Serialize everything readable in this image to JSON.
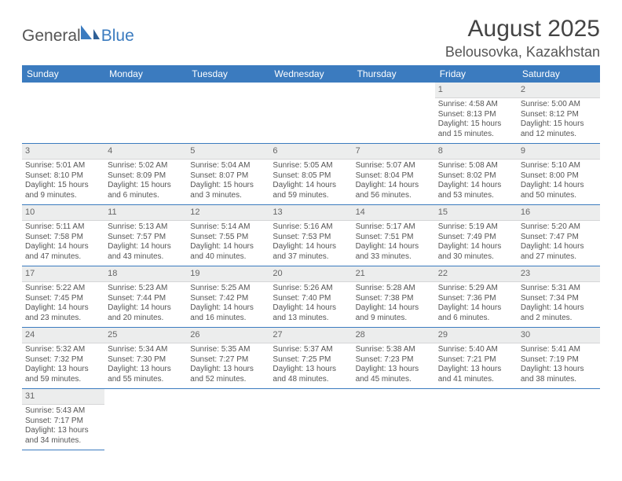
{
  "logo": {
    "part1": "General",
    "part2": "Blue"
  },
  "title": "August 2025",
  "location": "Belousovka, Kazakhstan",
  "colors": {
    "header_bg": "#3b7bbf",
    "header_text": "#ffffff",
    "daynum_bg": "#eceded",
    "divider": "#3b7bbf",
    "body_text": "#555555"
  },
  "weekdays": [
    "Sunday",
    "Monday",
    "Tuesday",
    "Wednesday",
    "Thursday",
    "Friday",
    "Saturday"
  ],
  "weeks": [
    [
      null,
      null,
      null,
      null,
      null,
      {
        "n": "1",
        "sunrise": "4:58 AM",
        "sunset": "8:13 PM",
        "daylight": "15 hours and 15 minutes."
      },
      {
        "n": "2",
        "sunrise": "5:00 AM",
        "sunset": "8:12 PM",
        "daylight": "15 hours and 12 minutes."
      }
    ],
    [
      {
        "n": "3",
        "sunrise": "5:01 AM",
        "sunset": "8:10 PM",
        "daylight": "15 hours and 9 minutes."
      },
      {
        "n": "4",
        "sunrise": "5:02 AM",
        "sunset": "8:09 PM",
        "daylight": "15 hours and 6 minutes."
      },
      {
        "n": "5",
        "sunrise": "5:04 AM",
        "sunset": "8:07 PM",
        "daylight": "15 hours and 3 minutes."
      },
      {
        "n": "6",
        "sunrise": "5:05 AM",
        "sunset": "8:05 PM",
        "daylight": "14 hours and 59 minutes."
      },
      {
        "n": "7",
        "sunrise": "5:07 AM",
        "sunset": "8:04 PM",
        "daylight": "14 hours and 56 minutes."
      },
      {
        "n": "8",
        "sunrise": "5:08 AM",
        "sunset": "8:02 PM",
        "daylight": "14 hours and 53 minutes."
      },
      {
        "n": "9",
        "sunrise": "5:10 AM",
        "sunset": "8:00 PM",
        "daylight": "14 hours and 50 minutes."
      }
    ],
    [
      {
        "n": "10",
        "sunrise": "5:11 AM",
        "sunset": "7:58 PM",
        "daylight": "14 hours and 47 minutes."
      },
      {
        "n": "11",
        "sunrise": "5:13 AM",
        "sunset": "7:57 PM",
        "daylight": "14 hours and 43 minutes."
      },
      {
        "n": "12",
        "sunrise": "5:14 AM",
        "sunset": "7:55 PM",
        "daylight": "14 hours and 40 minutes."
      },
      {
        "n": "13",
        "sunrise": "5:16 AM",
        "sunset": "7:53 PM",
        "daylight": "14 hours and 37 minutes."
      },
      {
        "n": "14",
        "sunrise": "5:17 AM",
        "sunset": "7:51 PM",
        "daylight": "14 hours and 33 minutes."
      },
      {
        "n": "15",
        "sunrise": "5:19 AM",
        "sunset": "7:49 PM",
        "daylight": "14 hours and 30 minutes."
      },
      {
        "n": "16",
        "sunrise": "5:20 AM",
        "sunset": "7:47 PM",
        "daylight": "14 hours and 27 minutes."
      }
    ],
    [
      {
        "n": "17",
        "sunrise": "5:22 AM",
        "sunset": "7:45 PM",
        "daylight": "14 hours and 23 minutes."
      },
      {
        "n": "18",
        "sunrise": "5:23 AM",
        "sunset": "7:44 PM",
        "daylight": "14 hours and 20 minutes."
      },
      {
        "n": "19",
        "sunrise": "5:25 AM",
        "sunset": "7:42 PM",
        "daylight": "14 hours and 16 minutes."
      },
      {
        "n": "20",
        "sunrise": "5:26 AM",
        "sunset": "7:40 PM",
        "daylight": "14 hours and 13 minutes."
      },
      {
        "n": "21",
        "sunrise": "5:28 AM",
        "sunset": "7:38 PM",
        "daylight": "14 hours and 9 minutes."
      },
      {
        "n": "22",
        "sunrise": "5:29 AM",
        "sunset": "7:36 PM",
        "daylight": "14 hours and 6 minutes."
      },
      {
        "n": "23",
        "sunrise": "5:31 AM",
        "sunset": "7:34 PM",
        "daylight": "14 hours and 2 minutes."
      }
    ],
    [
      {
        "n": "24",
        "sunrise": "5:32 AM",
        "sunset": "7:32 PM",
        "daylight": "13 hours and 59 minutes."
      },
      {
        "n": "25",
        "sunrise": "5:34 AM",
        "sunset": "7:30 PM",
        "daylight": "13 hours and 55 minutes."
      },
      {
        "n": "26",
        "sunrise": "5:35 AM",
        "sunset": "7:27 PM",
        "daylight": "13 hours and 52 minutes."
      },
      {
        "n": "27",
        "sunrise": "5:37 AM",
        "sunset": "7:25 PM",
        "daylight": "13 hours and 48 minutes."
      },
      {
        "n": "28",
        "sunrise": "5:38 AM",
        "sunset": "7:23 PM",
        "daylight": "13 hours and 45 minutes."
      },
      {
        "n": "29",
        "sunrise": "5:40 AM",
        "sunset": "7:21 PM",
        "daylight": "13 hours and 41 minutes."
      },
      {
        "n": "30",
        "sunrise": "5:41 AM",
        "sunset": "7:19 PM",
        "daylight": "13 hours and 38 minutes."
      }
    ],
    [
      {
        "n": "31",
        "sunrise": "5:43 AM",
        "sunset": "7:17 PM",
        "daylight": "13 hours and 34 minutes."
      },
      null,
      null,
      null,
      null,
      null,
      null
    ]
  ],
  "labels": {
    "sunrise": "Sunrise:",
    "sunset": "Sunset:",
    "daylight": "Daylight:"
  }
}
